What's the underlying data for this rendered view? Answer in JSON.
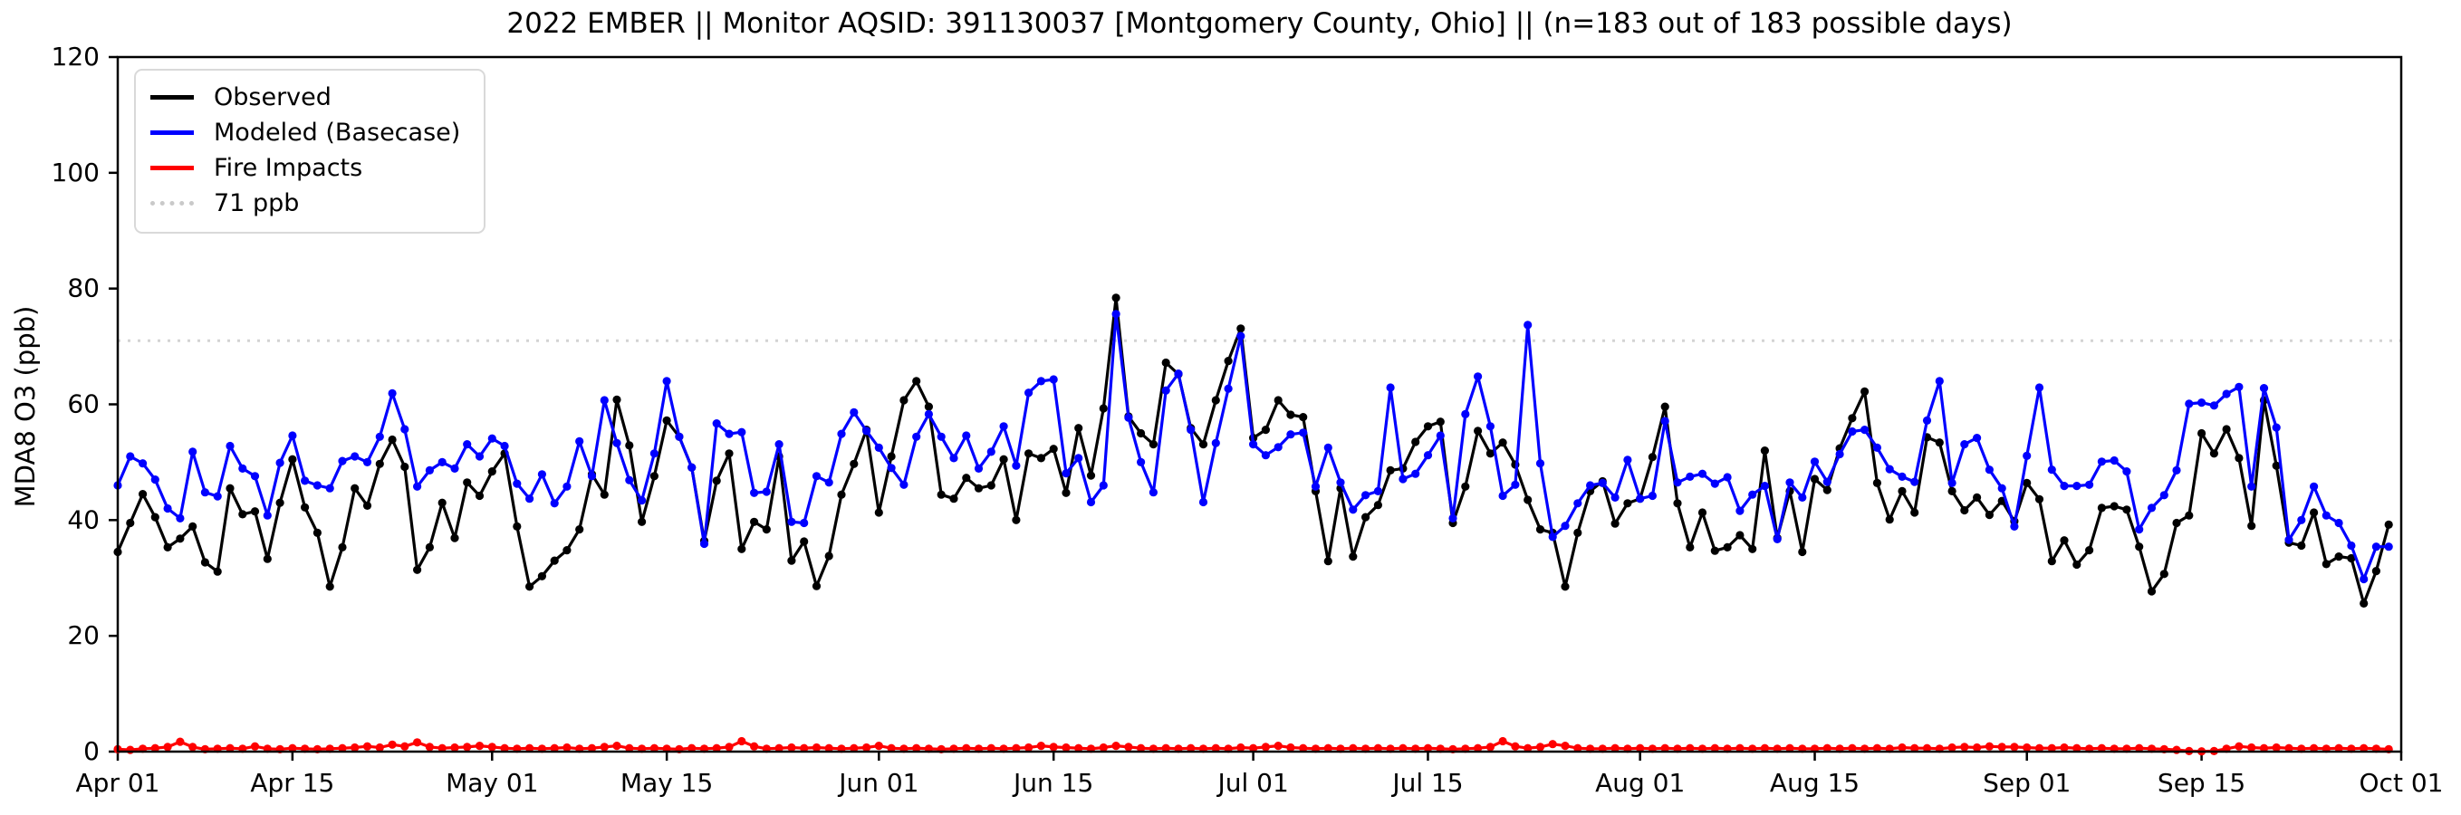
{
  "title": "2022 EMBER || Monitor AQSID: 391130037 [Montgomery County, Ohio] || (n=183 out of 183 possible days)",
  "chart_data": {
    "type": "line",
    "title": "2022 EMBER || Monitor AQSID: 391130037 [Montgomery County, Ohio] || (n=183 out of 183 possible days)",
    "xlabel": "",
    "ylabel": "MDA8 O3 (ppb)",
    "ylim": [
      0,
      120
    ],
    "y_ticks": [
      0,
      20,
      40,
      60,
      80,
      100,
      120
    ],
    "x_ticks": [
      {
        "label": "Apr 01",
        "day": 0
      },
      {
        "label": "Apr 15",
        "day": 14
      },
      {
        "label": "May 01",
        "day": 30
      },
      {
        "label": "May 15",
        "day": 44
      },
      {
        "label": "Jun 01",
        "day": 61
      },
      {
        "label": "Jun 15",
        "day": 75
      },
      {
        "label": "Jul 01",
        "day": 91
      },
      {
        "label": "Jul 15",
        "day": 105
      },
      {
        "label": "Aug 01",
        "day": 122
      },
      {
        "label": "Aug 15",
        "day": 136
      },
      {
        "label": "Sep 01",
        "day": 153
      },
      {
        "label": "Sep 15",
        "day": 167
      },
      {
        "label": "Oct 01",
        "day": 183
      }
    ],
    "n_points": 183,
    "grid": false,
    "legend_position": "upper left",
    "threshold": {
      "label": "71 ppb",
      "value": 71,
      "color": "#d3d3d3"
    },
    "series": [
      {
        "name": "Observed",
        "color": "#000000",
        "values": [
          34.5,
          39.5,
          44.5,
          40.5,
          35.3,
          36.8,
          38.9,
          32.7,
          31.1,
          45.5,
          41.0,
          41.5,
          33.3,
          43.0,
          50.5,
          42.2,
          37.8,
          28.5,
          35.3,
          45.5,
          42.5,
          49.7,
          53.9,
          49.2,
          31.4,
          35.3,
          43.0,
          36.9,
          46.5,
          44.2,
          48.4,
          51.5,
          38.9,
          28.5,
          30.3,
          33.0,
          34.8,
          38.4,
          47.9,
          44.4,
          60.8,
          52.9,
          39.7,
          47.6,
          57.2,
          54.4,
          49.1,
          36.4,
          46.8,
          51.5,
          35.0,
          39.7,
          38.4,
          51.0,
          33.0,
          36.3,
          28.6,
          33.8,
          44.4,
          49.7,
          55.6,
          41.3,
          51.0,
          60.7,
          64.0,
          59.6,
          44.4,
          43.7,
          47.3,
          45.5,
          46.0,
          50.5,
          40.0,
          51.5,
          50.7,
          52.3,
          44.7,
          55.9,
          47.7,
          59.3,
          78.4,
          57.9,
          55.0,
          53.1,
          67.2,
          65.2,
          55.9,
          53.1,
          60.7,
          67.5,
          73.1,
          54.2,
          55.6,
          60.7,
          58.2,
          57.8,
          45.0,
          32.9,
          45.5,
          33.7,
          40.5,
          42.6,
          48.6,
          48.9,
          53.5,
          56.2,
          57.0,
          39.5,
          45.8,
          55.4,
          51.5,
          53.4,
          49.6,
          43.5,
          38.4,
          37.8,
          28.5,
          37.8,
          45.0,
          46.7,
          39.4,
          42.9,
          43.7,
          50.9,
          59.6,
          42.9,
          35.3,
          41.3,
          34.7,
          35.3,
          37.4,
          35.0,
          52.0,
          36.9,
          45.0,
          34.5,
          47.1,
          45.2,
          52.4,
          57.6,
          62.2,
          46.4,
          40.1,
          45.0,
          41.3,
          54.3,
          53.4,
          45.0,
          41.7,
          43.9,
          40.9,
          43.3,
          39.8,
          46.4,
          43.6,
          32.9,
          36.5,
          32.3,
          34.8,
          42.1,
          42.4,
          41.8,
          35.4,
          27.7,
          30.7,
          39.5,
          40.8,
          55.0,
          51.5,
          55.7,
          50.7,
          39.0,
          60.7,
          49.4,
          36.1,
          35.6,
          41.3,
          32.4,
          33.7,
          33.4,
          25.6,
          31.2,
          39.2
        ]
      },
      {
        "name": "Modeled (Basecase)",
        "color": "#0000ff",
        "values": [
          46.0,
          51.0,
          49.8,
          47.0,
          42.0,
          40.3,
          51.8,
          44.8,
          44.1,
          52.8,
          48.9,
          47.6,
          40.8,
          49.9,
          54.6,
          46.8,
          46.0,
          45.5,
          50.2,
          51.0,
          50.0,
          54.4,
          61.9,
          55.7,
          45.8,
          48.6,
          50.0,
          48.9,
          53.1,
          51.0,
          54.1,
          52.8,
          46.3,
          43.7,
          47.9,
          42.9,
          45.8,
          53.6,
          47.6,
          60.7,
          53.3,
          46.9,
          43.4,
          51.5,
          64.0,
          54.4,
          49.1,
          35.9,
          56.7,
          54.9,
          55.2,
          44.7,
          44.9,
          53.1,
          39.7,
          39.5,
          47.6,
          46.5,
          54.9,
          58.6,
          55.4,
          52.5,
          49.0,
          46.1,
          54.4,
          58.3,
          54.4,
          50.7,
          54.6,
          48.9,
          51.8,
          56.2,
          49.4,
          62.0,
          64.0,
          64.3,
          48.1,
          50.7,
          43.1,
          46.0,
          75.6,
          57.7,
          50.0,
          44.8,
          62.4,
          65.3,
          55.6,
          43.1,
          53.3,
          62.7,
          71.8,
          53.1,
          51.2,
          52.6,
          54.8,
          55.1,
          45.8,
          52.5,
          46.5,
          41.8,
          44.3,
          45.0,
          62.9,
          47.1,
          48.0,
          51.2,
          54.6,
          40.3,
          58.3,
          64.8,
          56.2,
          44.2,
          46.1,
          73.7,
          49.8,
          37.1,
          39.0,
          42.9,
          46.0,
          46.4,
          43.9,
          50.4,
          43.7,
          44.2,
          57.1,
          46.5,
          47.5,
          48.0,
          46.3,
          47.4,
          41.6,
          44.4,
          45.9,
          36.7,
          46.5,
          43.9,
          50.1,
          46.6,
          51.4,
          55.3,
          55.6,
          52.5,
          48.8,
          47.5,
          46.6,
          57.2,
          64.0,
          46.4,
          53.1,
          54.2,
          48.7,
          45.5,
          38.9,
          51.1,
          62.9,
          48.7,
          45.9,
          45.9,
          46.1,
          50.1,
          50.3,
          48.4,
          38.4,
          42.1,
          44.3,
          48.6,
          60.1,
          60.3,
          59.8,
          61.8,
          63.0,
          45.8,
          62.8,
          56.0,
          36.6,
          40.0,
          45.8,
          40.8,
          39.5,
          35.6,
          29.8,
          35.4,
          35.4
        ]
      },
      {
        "name": "Fire Impacts",
        "color": "#ff0000",
        "values": [
          0.4,
          0.3,
          0.5,
          0.6,
          0.8,
          1.7,
          0.8,
          0.4,
          0.5,
          0.6,
          0.5,
          0.9,
          0.5,
          0.4,
          0.6,
          0.5,
          0.4,
          0.5,
          0.6,
          0.7,
          0.9,
          0.7,
          1.2,
          0.9,
          1.6,
          0.8,
          0.6,
          0.7,
          0.8,
          1.0,
          0.8,
          0.6,
          0.5,
          0.6,
          0.5,
          0.6,
          0.7,
          0.5,
          0.6,
          0.8,
          1.0,
          0.6,
          0.5,
          0.6,
          0.5,
          0.4,
          0.6,
          0.5,
          0.6,
          0.8,
          1.8,
          0.9,
          0.5,
          0.6,
          0.7,
          0.6,
          0.7,
          0.6,
          0.5,
          0.6,
          0.7,
          1.0,
          0.6,
          0.5,
          0.6,
          0.5,
          0.4,
          0.5,
          0.6,
          0.5,
          0.6,
          0.5,
          0.6,
          0.7,
          1.0,
          0.8,
          0.7,
          0.6,
          0.5,
          0.7,
          1.0,
          0.8,
          0.6,
          0.5,
          0.6,
          0.5,
          0.6,
          0.5,
          0.6,
          0.5,
          0.7,
          0.6,
          0.8,
          1.0,
          0.7,
          0.6,
          0.5,
          0.6,
          0.5,
          0.6,
          0.5,
          0.6,
          0.5,
          0.6,
          0.5,
          0.6,
          0.5,
          0.4,
          0.5,
          0.6,
          0.8,
          1.8,
          0.9,
          0.6,
          0.8,
          1.3,
          1.0,
          0.6,
          0.5,
          0.5,
          0.6,
          0.5,
          0.6,
          0.5,
          0.6,
          0.5,
          0.6,
          0.5,
          0.6,
          0.5,
          0.6,
          0.5,
          0.6,
          0.5,
          0.6,
          0.5,
          0.5,
          0.6,
          0.5,
          0.6,
          0.5,
          0.6,
          0.5,
          0.7,
          0.6,
          0.6,
          0.5,
          0.7,
          0.8,
          0.7,
          0.9,
          0.8,
          0.8,
          0.7,
          0.6,
          0.6,
          0.7,
          0.6,
          0.5,
          0.6,
          0.5,
          0.5,
          0.6,
          0.5,
          0.4,
          0.3,
          0.1,
          0.05,
          0.1,
          0.5,
          0.9,
          0.7,
          0.6,
          0.7,
          0.6,
          0.5,
          0.6,
          0.5,
          0.6,
          0.5,
          0.6,
          0.5,
          0.4
        ]
      }
    ]
  }
}
